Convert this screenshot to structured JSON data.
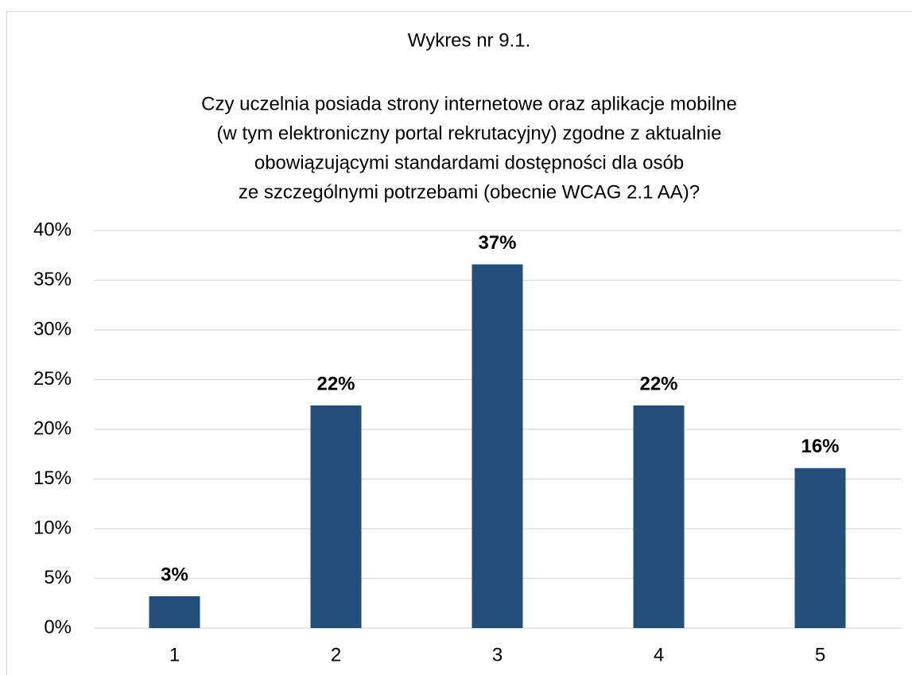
{
  "chart_data": {
    "type": "bar",
    "title": "Wykres nr 9.1.",
    "subtitle": [
      "Czy uczelnia posiada strony internetowe oraz aplikacje mobilne",
      "(w tym elektroniczny portal rekrutacyjny) zgodne z aktualnie",
      "obowiązującymi standardami dostępności dla osób",
      "ze szczególnymi potrzebami (obecnie WCAG 2.1 AA)?"
    ],
    "categories": [
      "1",
      "2",
      "3",
      "4",
      "5"
    ],
    "values": [
      3.2,
      22.4,
      36.6,
      22.4,
      16.1
    ],
    "value_labels": [
      "3%",
      "22%",
      "37%",
      "22%",
      "16%"
    ],
    "color": "#234f7a",
    "ylim": [
      0,
      40
    ],
    "yticks": [
      {
        "value": 0,
        "label": "0%"
      },
      {
        "value": 5,
        "label": "5%"
      },
      {
        "value": 10,
        "label": "10%"
      },
      {
        "value": 15,
        "label": "15%"
      },
      {
        "value": 20,
        "label": "20%"
      },
      {
        "value": 25,
        "label": "25%"
      },
      {
        "value": 30,
        "label": "30%"
      },
      {
        "value": 35,
        "label": "35%"
      },
      {
        "value": 40,
        "label": "40%"
      }
    ],
    "grid": true
  }
}
